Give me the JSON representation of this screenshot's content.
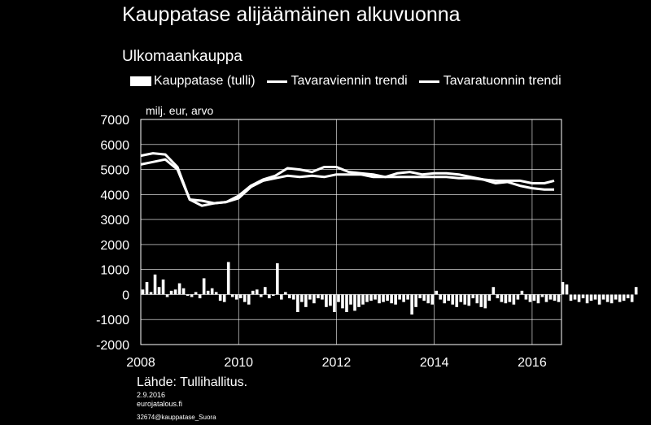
{
  "title": "Kauppatase alijäämäinen alkuvuonna",
  "subtitle": "Ulkomaankauppa",
  "legend": [
    "Kauppatase (tulli)",
    "Tavaraviennin trendi",
    "Tavaratuonnin trendi"
  ],
  "footer": {
    "source": "Lähde: Tullihallitus.",
    "date": "2.9.2016",
    "site": "eurojatalous.fi",
    "code": "32674@kauppatase_Suora"
  },
  "chart_data": {
    "type": "bar+line",
    "ylabel": "milj. eur, arvo",
    "ylim": [
      -2000,
      7000
    ],
    "yticks": [
      7000,
      6000,
      5000,
      4000,
      3000,
      2000,
      1000,
      0,
      -1000,
      -2000
    ],
    "xticks": [
      "2008",
      "2010",
      "2012",
      "2014",
      "2016"
    ],
    "start": "2008-01",
    "bar_series": {
      "name": "Kauppatase (tulli)",
      "values": [
        200,
        500,
        100,
        800,
        300,
        600,
        -100,
        150,
        200,
        450,
        250,
        -50,
        -100,
        100,
        -150,
        650,
        150,
        250,
        100,
        -250,
        -300,
        1300,
        -100,
        -200,
        -150,
        -300,
        -400,
        150,
        200,
        -100,
        300,
        -150,
        -50,
        1250,
        -200,
        100,
        -150,
        -200,
        -700,
        -300,
        -500,
        -200,
        -350,
        -150,
        -200,
        -500,
        -450,
        -700,
        -300,
        -550,
        -700,
        -400,
        -650,
        -500,
        -400,
        -300,
        -250,
        -200,
        -350,
        -300,
        -250,
        -350,
        -400,
        -200,
        -300,
        -200,
        -800,
        -500,
        -150,
        -250,
        -350,
        -400,
        150,
        -200,
        -350,
        -250,
        -400,
        -500,
        -300,
        -400,
        -450,
        -150,
        -350,
        -500,
        -550,
        -250,
        300,
        -150,
        -300,
        -350,
        -300,
        -400,
        -200,
        150,
        -200,
        -300,
        -250,
        -350,
        -100,
        -300,
        -200,
        -250,
        -300,
        500,
        400,
        -250,
        -200,
        -300,
        -150,
        -350,
        -250,
        -200,
        -400,
        -200,
        -300,
        -350,
        -200,
        -300,
        -250,
        -150,
        -300,
        300
      ]
    },
    "line_series": [
      {
        "name": "Tavaraviennin trendi",
        "x": [
          2008.0,
          2008.25,
          2008.5,
          2008.75,
          2009.0,
          2009.25,
          2009.5,
          2009.75,
          2010.0,
          2010.25,
          2010.5,
          2010.75,
          2011.0,
          2011.25,
          2011.5,
          2011.75,
          2012.0,
          2012.25,
          2012.5,
          2012.75,
          2013.0,
          2013.25,
          2013.5,
          2013.75,
          2014.0,
          2014.25,
          2014.5,
          2014.75,
          2015.0,
          2015.25,
          2015.5,
          2015.75,
          2016.0,
          2016.25,
          2016.45
        ],
        "values": [
          5550,
          5650,
          5600,
          5100,
          3800,
          3550,
          3650,
          3700,
          3950,
          4350,
          4600,
          4750,
          5050,
          5000,
          4900,
          5100,
          5100,
          4900,
          4850,
          4800,
          4700,
          4850,
          4900,
          4800,
          4850,
          4850,
          4800,
          4700,
          4600,
          4450,
          4500,
          4350,
          4250,
          4200,
          4200
        ]
      },
      {
        "name": "Tavaratuonnin trendi",
        "x": [
          2008.0,
          2008.25,
          2008.5,
          2008.75,
          2009.0,
          2009.25,
          2009.5,
          2009.75,
          2010.0,
          2010.25,
          2010.5,
          2010.75,
          2011.0,
          2011.25,
          2011.5,
          2011.75,
          2012.0,
          2012.25,
          2012.5,
          2012.75,
          2013.0,
          2013.25,
          2013.5,
          2013.75,
          2014.0,
          2014.25,
          2014.5,
          2014.75,
          2015.0,
          2015.25,
          2015.5,
          2015.75,
          2016.0,
          2016.25,
          2016.45
        ],
        "values": [
          5200,
          5300,
          5400,
          5000,
          3800,
          3750,
          3650,
          3700,
          3850,
          4300,
          4550,
          4650,
          4750,
          4700,
          4750,
          4700,
          4800,
          4800,
          4800,
          4700,
          4700,
          4700,
          4700,
          4700,
          4700,
          4700,
          4650,
          4650,
          4600,
          4550,
          4550,
          4550,
          4450,
          4450,
          4550
        ]
      }
    ]
  }
}
